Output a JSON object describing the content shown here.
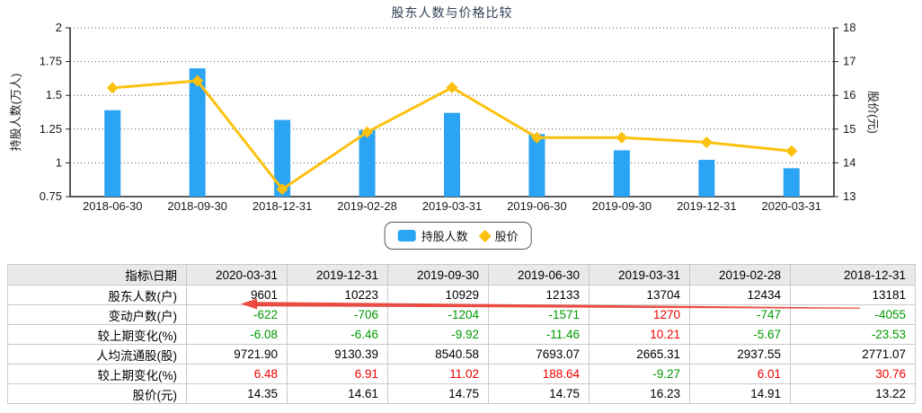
{
  "chart_data": {
    "type": "bar+line",
    "title": "股东人数与价格比较",
    "categories": [
      "2018-06-30",
      "2018-09-30",
      "2018-12-31",
      "2019-02-28",
      "2019-03-31",
      "2019-06-30",
      "2019-09-30",
      "2019-12-31",
      "2020-03-31"
    ],
    "series": [
      {
        "name": "持股人数",
        "type": "bar",
        "axis": "left",
        "color": "#2ca4f4",
        "values": [
          1.39,
          1.7,
          1.3181,
          1.2434,
          1.3704,
          1.2133,
          1.0929,
          1.0223,
          0.9601
        ]
      },
      {
        "name": "股价",
        "type": "line",
        "axis": "right",
        "color": "#fcc10e",
        "values": [
          16.22,
          16.43,
          13.22,
          14.91,
          16.23,
          14.75,
          14.75,
          14.61,
          14.35
        ]
      }
    ],
    "left_axis": {
      "label": "持股人数(万人)",
      "min": 0.75,
      "max": 2,
      "ticks": [
        2,
        1.75,
        1.5,
        1.25,
        1,
        0.75
      ]
    },
    "right_axis": {
      "label": "股价(元)",
      "min": 13,
      "max": 18,
      "ticks": [
        18,
        17,
        16,
        15,
        14,
        13
      ]
    },
    "grid": "dotted-horizontal",
    "legend_position": "bottom-center"
  },
  "legend": {
    "bar_label": "持股人数",
    "line_label": "股价"
  },
  "arrow": {
    "color": "#e8352b",
    "direction": "left",
    "row": "股东人数(户)"
  },
  "table": {
    "header": [
      "指标\\日期",
      "2020-03-31",
      "2019-12-31",
      "2019-09-30",
      "2019-06-30",
      "2019-03-31",
      "2019-02-28",
      "2018-12-31"
    ],
    "rows": [
      {
        "label": "股东人数(户)",
        "values": [
          "9601",
          "10223",
          "10929",
          "12133",
          "13704",
          "12434",
          "13181"
        ],
        "colors": [
          "k",
          "k",
          "k",
          "k",
          "k",
          "k",
          "k"
        ]
      },
      {
        "label": "变动户数(户)",
        "values": [
          "-622",
          "-706",
          "-1204",
          "-1571",
          "1270",
          "-747",
          "-4055"
        ],
        "colors": [
          "g",
          "g",
          "g",
          "g",
          "r",
          "g",
          "g"
        ]
      },
      {
        "label": "较上期变化(%)",
        "values": [
          "-6.08",
          "-6.46",
          "-9.92",
          "-11.46",
          "10.21",
          "-5.67",
          "-23.53"
        ],
        "colors": [
          "g",
          "g",
          "g",
          "g",
          "r",
          "g",
          "g"
        ]
      },
      {
        "label": "人均流通股(股)",
        "values": [
          "9721.90",
          "9130.39",
          "8540.58",
          "7693.07",
          "2665.31",
          "2937.55",
          "2771.07"
        ],
        "colors": [
          "k",
          "k",
          "k",
          "k",
          "k",
          "k",
          "k"
        ]
      },
      {
        "label": "较上期变化(%)",
        "values": [
          "6.48",
          "6.91",
          "11.02",
          "188.64",
          "-9.27",
          "6.01",
          "30.76"
        ],
        "colors": [
          "r",
          "r",
          "r",
          "r",
          "g",
          "r",
          "r"
        ]
      },
      {
        "label": "股价(元)",
        "values": [
          "14.35",
          "14.61",
          "14.75",
          "14.75",
          "16.23",
          "14.91",
          "13.22"
        ],
        "colors": [
          "k",
          "k",
          "k",
          "k",
          "k",
          "k",
          "k"
        ]
      }
    ]
  }
}
